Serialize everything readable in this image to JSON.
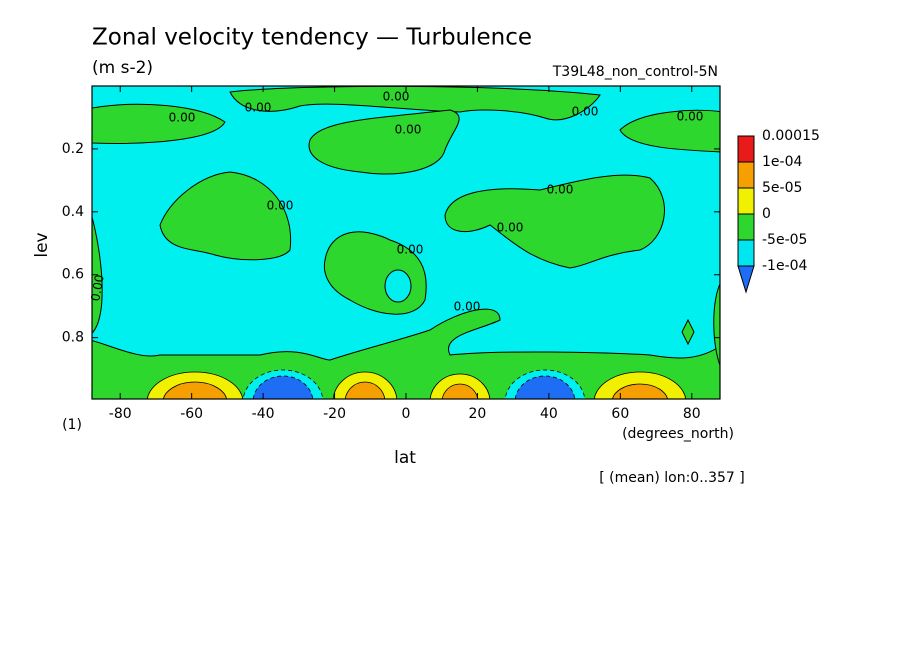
{
  "chart_data": {
    "type": "contour",
    "title": "Zonal velocity tendency — Turbulence",
    "units": "(m s-2)",
    "run_label": "T39L48_non_control-5N",
    "xlabel": "lat",
    "xunits": "(degrees_north)",
    "ylabel": "lev",
    "yunits": "(1)",
    "note": "[ (mean) lon:0..357 ]",
    "contour_label": "0.00",
    "xlim": [
      -87.9,
      87.9
    ],
    "xticks": [
      -80,
      -60,
      -40,
      -20,
      0,
      20,
      40,
      60,
      80
    ],
    "ylim": [
      0,
      0.995
    ],
    "y_inverted": true,
    "yticks": [
      0.2,
      0.4,
      0.6,
      0.8
    ],
    "colorbar": {
      "colors": [
        "#1e6ef5",
        "#00e6f0",
        "#2ed72e",
        "#f0f000",
        "#f5a000",
        "#e81a1a"
      ],
      "ticks": [
        {
          "value": -0.0001,
          "label": "-1e-04"
        },
        {
          "value": -5e-05,
          "label": "-5e-05"
        },
        0,
        {
          "value": 5e-05,
          "label": "5e-05"
        },
        {
          "value": 0.0001,
          "label": "1e-04"
        },
        0.00015
      ]
    }
  }
}
